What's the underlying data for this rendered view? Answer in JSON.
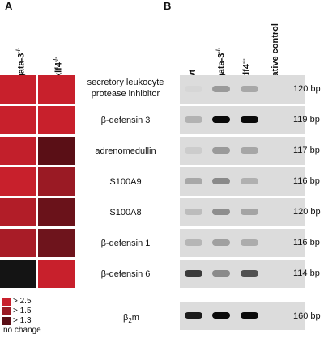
{
  "panels": {
    "a": "A",
    "b": "B"
  },
  "heatmap": {
    "columns": [
      {
        "base": "gata-3",
        "sup": "-/-"
      },
      {
        "base": "klf4",
        "sup": "-/-"
      }
    ],
    "rows": [
      [
        "#c8202c",
        "#c8202c"
      ],
      [
        "#c8202c",
        "#c8202c"
      ],
      [
        "#c21f2b",
        "#5a0f16"
      ],
      [
        "#c8202c",
        "#9a1a24"
      ],
      [
        "#b21d28",
        "#6a121a"
      ],
      [
        "#a81c27",
        "#6e141c"
      ],
      [
        "#141414",
        "#c8202c"
      ]
    ]
  },
  "legend": [
    {
      "label": "> 2.5",
      "color": "#c8202c"
    },
    {
      "label": "> 1.5",
      "color": "#9a1a24"
    },
    {
      "label": "> 1.3",
      "color": "#5a0f16"
    },
    {
      "label": "no change",
      "color": "#141414"
    }
  ],
  "gel": {
    "lanes": [
      {
        "base": "wt",
        "sup": ""
      },
      {
        "base": "gata-3",
        "sup": "-/-"
      },
      {
        "base": "klf4",
        "sup": "-/-"
      },
      {
        "base": "negative control",
        "sup": ""
      }
    ],
    "rows": [
      {
        "gene": "secretory leukocyte protease inhibitor",
        "size": "120 bp",
        "bands": [
          "#d6d6d6",
          "#9a9a9a",
          "#a8a8a8",
          "#dcdcdc"
        ]
      },
      {
        "gene": "β-defensin 3",
        "size": "119 bp",
        "bands": [
          "#b2b2b2",
          "#0a0a0a",
          "#0a0a0a",
          "#dcdcdc"
        ]
      },
      {
        "gene": "adrenomedullin",
        "size": "117 bp",
        "bands": [
          "#cccccc",
          "#9a9a9a",
          "#a6a6a6",
          "#dcdcdc"
        ]
      },
      {
        "gene": "S100A9",
        "size": "116 bp",
        "bands": [
          "#a8a8a8",
          "#8a8a8a",
          "#b0b0b0",
          "#dcdcdc"
        ]
      },
      {
        "gene": "S100A8",
        "size": "120 bp",
        "bands": [
          "#bcbcbc",
          "#8e8e8e",
          "#a4a4a4",
          "#dcdcdc"
        ]
      },
      {
        "gene": "β-defensin 1",
        "size": "116 bp",
        "bands": [
          "#b6b6b6",
          "#a0a0a0",
          "#acacac",
          "#dcdcdc"
        ]
      },
      {
        "gene": "β-defensin 6",
        "size": "114 bp",
        "bands": [
          "#3a3a3a",
          "#8a8a8a",
          "#505050",
          "#dcdcdc"
        ]
      }
    ],
    "control": {
      "gene_base": "β",
      "gene_sub": "2",
      "gene_rest": "m",
      "size": "160 bp",
      "bands": [
        "#1a1a1a",
        "#0a0a0a",
        "#0a0a0a",
        "#dcdcdc"
      ]
    }
  }
}
